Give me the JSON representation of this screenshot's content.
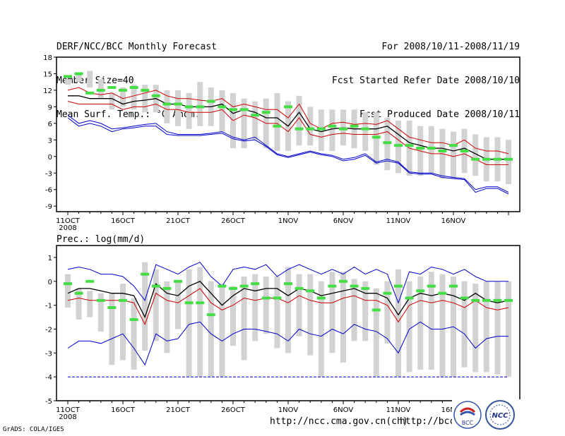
{
  "header": {
    "title_left": [
      "DERF/NCC/BCC Monthly Forecast",
      "Member Size=40",
      "Mean Surf. Temp.: °C Anom."
    ],
    "title_right": [
      "For 2008/10/11-2008/11/19",
      "Fcst Started Refer Date 2008/10/10",
      "Fcst Produced Date 2008/10/11"
    ]
  },
  "footer": {
    "grads_label": "GrADS: COLA/IGES",
    "url1": "http://ncc.cma.gov.cn(ch)",
    "url2": "http://bcc.",
    "logo_bcc": "BCC",
    "logo_ncc": "NCC"
  },
  "colors": {
    "ensemble_box": "#d2d2d2",
    "mean": "#000000",
    "spread": "#cc0000",
    "extreme": "#0000cc",
    "observed": "#44dd44"
  },
  "chart_data": [
    {
      "type": "line",
      "title": "Mean Surf. Temp.: °C Anom.",
      "xlabel": "",
      "ylabel": "",
      "ylim": [
        -10,
        18
      ],
      "yticks": [
        18,
        15,
        12,
        9,
        6,
        3,
        0,
        -3,
        -6,
        -9
      ],
      "x_tick_labels": [
        "11OCT\n2008",
        "16OCT",
        "21OCT",
        "26OCT",
        "1NOV",
        "6NOV",
        "11NOV",
        "16NOV"
      ],
      "x_tick_days": [
        0,
        5,
        10,
        15,
        20,
        25,
        30,
        35
      ],
      "days": 40,
      "series": [
        {
          "name": "max",
          "values": [
            7.5,
            6.0,
            6.5,
            6.0,
            5.0,
            5.2,
            5.5,
            5.8,
            6.0,
            4.5,
            4.0,
            4.0,
            4.0,
            4.2,
            4.5,
            3.5,
            3.0,
            3.5,
            2.0,
            0.5,
            0.0,
            0.5,
            1.0,
            0.5,
            0.2,
            -0.5,
            -0.2,
            0.5,
            -1.0,
            -0.5,
            -1.0,
            -2.8,
            -3.0,
            -3.0,
            -3.5,
            -3.8,
            -4.0,
            -6.0,
            -5.5,
            -5.5,
            -6.5
          ]
        },
        {
          "name": "spread_high",
          "values": [
            12.0,
            12.5,
            11.5,
            11.2,
            11.5,
            10.5,
            11.0,
            11.5,
            12.0,
            11.0,
            10.5,
            10.5,
            10.2,
            10.0,
            10.5,
            9.0,
            9.5,
            9.0,
            8.5,
            8.5,
            7.0,
            9.5,
            6.0,
            5.0,
            6.0,
            6.2,
            5.8,
            6.0,
            5.8,
            6.5,
            5.0,
            3.5,
            3.0,
            2.5,
            2.5,
            2.0,
            3.0,
            1.5,
            1.0,
            1.0,
            0.5
          ]
        },
        {
          "name": "mean",
          "values": [
            11.0,
            11.0,
            10.5,
            10.5,
            10.5,
            9.5,
            10.0,
            10.2,
            10.5,
            9.5,
            9.5,
            9.0,
            9.0,
            9.0,
            9.5,
            7.8,
            8.5,
            8.0,
            7.0,
            7.0,
            5.5,
            8.0,
            5.0,
            4.5,
            5.0,
            5.2,
            5.0,
            5.0,
            5.0,
            5.5,
            4.0,
            2.5,
            2.0,
            1.5,
            1.5,
            1.0,
            1.5,
            0.5,
            -0.5,
            -0.5,
            -0.5
          ]
        },
        {
          "name": "spread_low",
          "values": [
            10.0,
            9.5,
            9.5,
            9.5,
            9.5,
            8.5,
            9.0,
            9.0,
            9.5,
            8.5,
            8.5,
            8.0,
            8.0,
            8.0,
            8.5,
            6.5,
            7.5,
            7.0,
            6.0,
            6.0,
            4.5,
            7.0,
            4.0,
            3.5,
            4.0,
            4.2,
            4.0,
            4.0,
            4.0,
            4.5,
            3.0,
            1.5,
            1.0,
            0.5,
            0.5,
            0.0,
            0.5,
            -0.5,
            -1.5,
            -1.5,
            -1.5
          ]
        },
        {
          "name": "min",
          "values": [
            7.0,
            5.5,
            6.0,
            5.5,
            4.5,
            5.0,
            5.2,
            5.5,
            5.5,
            4.0,
            3.8,
            3.8,
            3.8,
            4.0,
            4.2,
            3.2,
            2.8,
            3.0,
            1.8,
            0.3,
            -0.2,
            0.3,
            0.8,
            0.3,
            0.0,
            -0.8,
            -0.5,
            0.2,
            -1.2,
            -0.8,
            -1.2,
            -3.0,
            -3.2,
            -3.2,
            -3.8,
            -4.0,
            -4.2,
            -6.5,
            -5.8,
            -5.8,
            -6.8
          ]
        },
        {
          "name": "observed",
          "values": [
            14.5,
            15.0,
            11.5,
            12.0,
            12.5,
            12.0,
            12.5,
            12.0,
            11.0,
            9.5,
            9.5,
            9.0,
            9.0,
            10.0,
            9.0,
            8.5,
            8.5,
            7.5,
            8.0,
            5.5,
            9.0,
            5.0,
            5.0,
            5.0,
            5.5,
            5.0,
            5.5,
            5.0,
            3.5,
            2.5,
            2.0,
            2.0,
            1.5,
            1.5,
            1.0,
            2.0,
            1.0,
            -0.5,
            -0.5,
            -0.5,
            -0.5
          ]
        },
        {
          "name": "box_top",
          "values": [
            14.0,
            15.0,
            15.5,
            14.0,
            11.5,
            12.5,
            13.0,
            13.0,
            13.0,
            12.0,
            12.0,
            11.5,
            13.5,
            12.5,
            12.0,
            11.5,
            10.5,
            10.0,
            10.5,
            11.5,
            10.0,
            11.0,
            9.0,
            8.5,
            8.5,
            8.5,
            8.5,
            8.0,
            8.0,
            7.0,
            6.5,
            6.5,
            5.5,
            5.5,
            5.0,
            4.5,
            5.0,
            4.0,
            3.5,
            3.5,
            3.0
          ]
        },
        {
          "name": "box_bottom",
          "values": [
            13.0,
            13.5,
            12.5,
            10.5,
            8.5,
            9.0,
            8.5,
            8.0,
            8.0,
            6.0,
            5.5,
            5.0,
            5.5,
            5.5,
            4.5,
            1.5,
            1.5,
            3.0,
            1.5,
            1.0,
            1.0,
            2.0,
            2.0,
            1.0,
            1.0,
            2.0,
            1.5,
            1.0,
            -1.5,
            -2.5,
            -3.0,
            -3.5,
            -3.5,
            -3.0,
            -4.0,
            -4.0,
            -3.0,
            -3.5,
            -4.5,
            -4.5,
            -5.0
          ]
        }
      ]
    },
    {
      "type": "line",
      "title": "Prec.: log(mm/d)",
      "xlabel": "",
      "ylabel": "",
      "ylim": [
        -5,
        1.5
      ],
      "yticks": [
        1,
        0,
        -1,
        -2,
        -3,
        -4,
        -5
      ],
      "x_tick_labels": [
        "11OCT\n2008",
        "16OCT",
        "21OCT",
        "26OCT",
        "1NOV",
        "6NOV",
        "11NOV",
        "16NOV"
      ],
      "x_tick_days": [
        0,
        5,
        10,
        15,
        20,
        25,
        30,
        35
      ],
      "days": 40,
      "series": [
        {
          "name": "max",
          "values": [
            0.5,
            0.6,
            0.5,
            0.3,
            0.3,
            0.2,
            -0.2,
            -0.8,
            0.7,
            0.5,
            0.3,
            0.6,
            0.8,
            0.2,
            -0.2,
            0.5,
            0.6,
            0.5,
            0.7,
            0.2,
            0.5,
            0.7,
            0.5,
            0.3,
            0.5,
            0.3,
            0.6,
            0.3,
            0.5,
            0.3,
            -0.9,
            0.4,
            0.3,
            0.6,
            0.5,
            0.3,
            0.5,
            0.2,
            0.0,
            0.0,
            0.0
          ]
        },
        {
          "name": "mean",
          "values": [
            -0.5,
            -0.3,
            -0.3,
            -0.4,
            -0.5,
            -0.5,
            -0.6,
            -1.5,
            -0.1,
            -0.5,
            -0.6,
            -0.2,
            0.0,
            -0.5,
            -1.0,
            -0.6,
            -0.3,
            -0.4,
            -0.3,
            -0.3,
            -0.6,
            -0.3,
            -0.4,
            -0.6,
            -0.5,
            -0.4,
            -0.3,
            -0.5,
            -0.5,
            -0.7,
            -1.4,
            -0.7,
            -0.5,
            -0.6,
            -0.5,
            -0.6,
            -0.8,
            -0.5,
            -0.8,
            -0.9,
            -0.8
          ]
        },
        {
          "name": "spread_low",
          "values": [
            -0.8,
            -0.7,
            -0.8,
            -0.8,
            -0.8,
            -0.8,
            -0.9,
            -1.8,
            -0.5,
            -0.8,
            -0.9,
            -0.6,
            -0.3,
            -0.9,
            -1.2,
            -1.0,
            -0.7,
            -0.8,
            -0.7,
            -0.7,
            -0.9,
            -0.6,
            -0.8,
            -0.9,
            -0.9,
            -0.7,
            -0.6,
            -0.8,
            -0.8,
            -1.0,
            -1.7,
            -1.0,
            -0.8,
            -0.9,
            -0.8,
            -0.9,
            -1.1,
            -0.8,
            -1.1,
            -1.2,
            -1.1
          ]
        },
        {
          "name": "min",
          "values": [
            -2.8,
            -2.5,
            -2.5,
            -2.6,
            -2.4,
            -2.2,
            -2.8,
            -3.5,
            -2.2,
            -2.5,
            -2.4,
            -1.8,
            -1.7,
            -2.2,
            -2.5,
            -2.2,
            -2.0,
            -2.0,
            -2.1,
            -2.2,
            -2.5,
            -2.0,
            -2.2,
            -2.3,
            -2.0,
            -2.2,
            -1.8,
            -2.0,
            -2.1,
            -2.4,
            -3.0,
            -2.0,
            -1.7,
            -2.0,
            -2.0,
            -1.9,
            -2.2,
            -2.8,
            -2.4,
            -2.3,
            -2.3
          ]
        },
        {
          "name": "threshold",
          "values": [
            -4,
            -4,
            -4,
            -4,
            -4,
            -4,
            -4,
            -4,
            -4,
            -4,
            -4,
            -4,
            -4,
            -4,
            -4,
            -4,
            -4,
            -4,
            -4,
            -4,
            -4,
            -4,
            -4,
            -4,
            -4,
            -4,
            -4,
            -4,
            -4,
            -4,
            -4,
            -4,
            -4,
            -4,
            -4,
            -4,
            -4,
            -4,
            -4,
            -4,
            -4
          ]
        },
        {
          "name": "observed",
          "values": [
            -0.1,
            -0.5,
            0.0,
            -0.8,
            -1.1,
            -0.8,
            -1.6,
            0.3,
            -0.2,
            -0.3,
            0.0,
            -0.9,
            -0.9,
            -1.4,
            -0.2,
            -0.3,
            -0.2,
            -0.1,
            -0.7,
            -0.7,
            -0.1,
            -0.3,
            -0.4,
            -0.7,
            -0.2,
            0.0,
            -0.2,
            -0.3,
            -1.2,
            -0.5,
            -0.2,
            -0.7,
            -0.4,
            -0.2,
            -0.5,
            -0.2,
            -0.7,
            -0.8,
            -0.8,
            -0.8,
            -0.8
          ]
        },
        {
          "name": "box_top",
          "values": [
            0.3,
            -0.3,
            -0.4,
            -0.5,
            -0.5,
            -0.1,
            -0.7,
            0.8,
            0.5,
            0.0,
            0.0,
            0.5,
            0.6,
            0.0,
            -0.1,
            -0.2,
            0.2,
            0.3,
            0.2,
            0.2,
            0.6,
            0.3,
            0.3,
            0.0,
            0.4,
            0.4,
            0.1,
            0.0,
            -0.3,
            0.0,
            0.5,
            0.0,
            0.2,
            0.4,
            0.3,
            0.2,
            0.0,
            -0.1,
            0.0,
            0.0,
            0.0
          ]
        },
        {
          "name": "box_bottom",
          "values": [
            -1.1,
            -1.6,
            -1.5,
            -2.1,
            -3.5,
            -3.3,
            -3.7,
            -2.9,
            -2.5,
            -3.0,
            -2.0,
            -4.0,
            -4.0,
            -4.0,
            -4.0,
            -2.7,
            -3.3,
            -2.5,
            -2.2,
            -2.8,
            -3.0,
            -2.3,
            -3.1,
            -4.0,
            -3.0,
            -3.4,
            -2.5,
            -2.5,
            -4.0,
            -2.6,
            -4.0,
            -3.8,
            -3.7,
            -3.7,
            -4.0,
            -4.0,
            -3.6,
            -3.8,
            -3.8,
            -3.9,
            -4.0
          ]
        }
      ]
    }
  ],
  "panel2_label": "Prec.: log(mm/d)"
}
